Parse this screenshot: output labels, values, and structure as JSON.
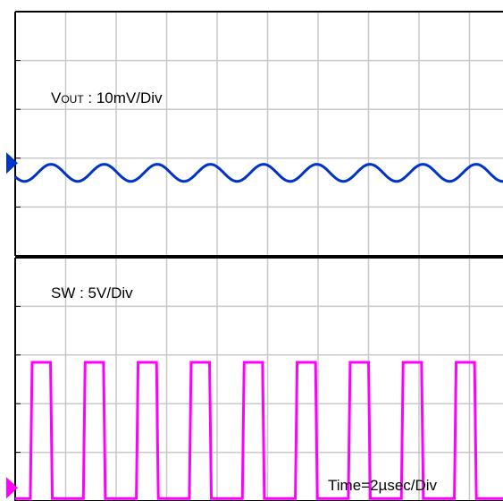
{
  "chart_data": [
    {
      "type": "line",
      "channel": "V",
      "channel_sub": "OUT",
      "channel_suffix": " : 10mV/Div",
      "color": "#0033cc",
      "marker_color": "#0033cc",
      "x_unit": "div",
      "y_unit": "div",
      "x_range": [
        0,
        10
      ],
      "y_range": [
        0,
        5
      ],
      "baseline_div": 1.7,
      "waveform": "sine",
      "periods": 9.5,
      "peak_to_peak_div": 0.35,
      "grid": true
    },
    {
      "type": "line",
      "channel": "SW : 5V/Div",
      "color": "#ff00ff",
      "marker_color": "#ff00ff",
      "x_unit": "div",
      "y_unit": "div",
      "x_range": [
        0,
        10
      ],
      "y_range": [
        0,
        5
      ],
      "waveform": "square",
      "low_div": 0.05,
      "high_div": 2.85,
      "rising_edges_div": [
        0.3,
        1.35,
        2.4,
        3.45,
        4.5,
        5.55,
        6.6,
        7.65,
        8.7
      ],
      "pulse_width_div": 0.4,
      "grid": true
    }
  ],
  "timebase": "Time=2µsec/Div"
}
